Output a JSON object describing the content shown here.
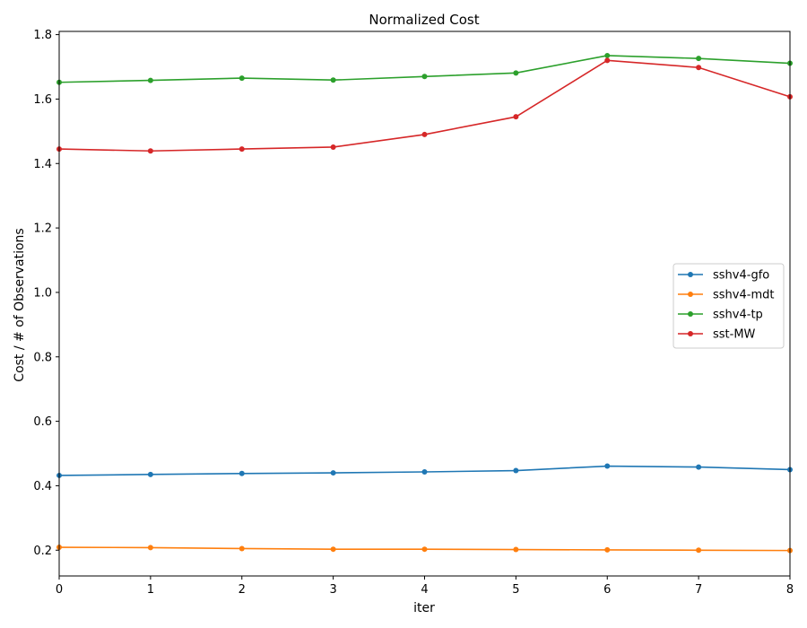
{
  "chart_data": {
    "type": "line",
    "title": "Normalized Cost",
    "xlabel": "iter",
    "ylabel": "Cost / # of Observations",
    "xlim": [
      0,
      8
    ],
    "ylim": [
      0.12,
      1.81
    ],
    "x": [
      0,
      1,
      2,
      3,
      4,
      5,
      6,
      7,
      8
    ],
    "xticks": [
      "0",
      "1",
      "2",
      "3",
      "4",
      "5",
      "6",
      "7",
      "8"
    ],
    "yticks": [
      "0.2",
      "0.4",
      "0.6",
      "0.8",
      "1.0",
      "1.2",
      "1.4",
      "1.6",
      "1.8"
    ],
    "grid": false,
    "legend_position": "center-right",
    "series": [
      {
        "name": "sshv4-gfo",
        "color": "#1f77b4",
        "values": [
          0.432,
          0.435,
          0.438,
          0.44,
          0.443,
          0.447,
          0.461,
          0.458,
          0.45
        ]
      },
      {
        "name": "sshv4-mdt",
        "color": "#ff7f0e",
        "values": [
          0.209,
          0.208,
          0.205,
          0.203,
          0.203,
          0.202,
          0.201,
          0.2,
          0.199
        ]
      },
      {
        "name": "sshv4-tp",
        "color": "#2ca02c",
        "values": [
          1.652,
          1.658,
          1.665,
          1.659,
          1.67,
          1.681,
          1.735,
          1.726,
          1.711
        ]
      },
      {
        "name": "sst-MW",
        "color": "#d62728",
        "values": [
          1.445,
          1.439,
          1.445,
          1.451,
          1.49,
          1.545,
          1.72,
          1.698,
          1.607
        ]
      }
    ]
  }
}
